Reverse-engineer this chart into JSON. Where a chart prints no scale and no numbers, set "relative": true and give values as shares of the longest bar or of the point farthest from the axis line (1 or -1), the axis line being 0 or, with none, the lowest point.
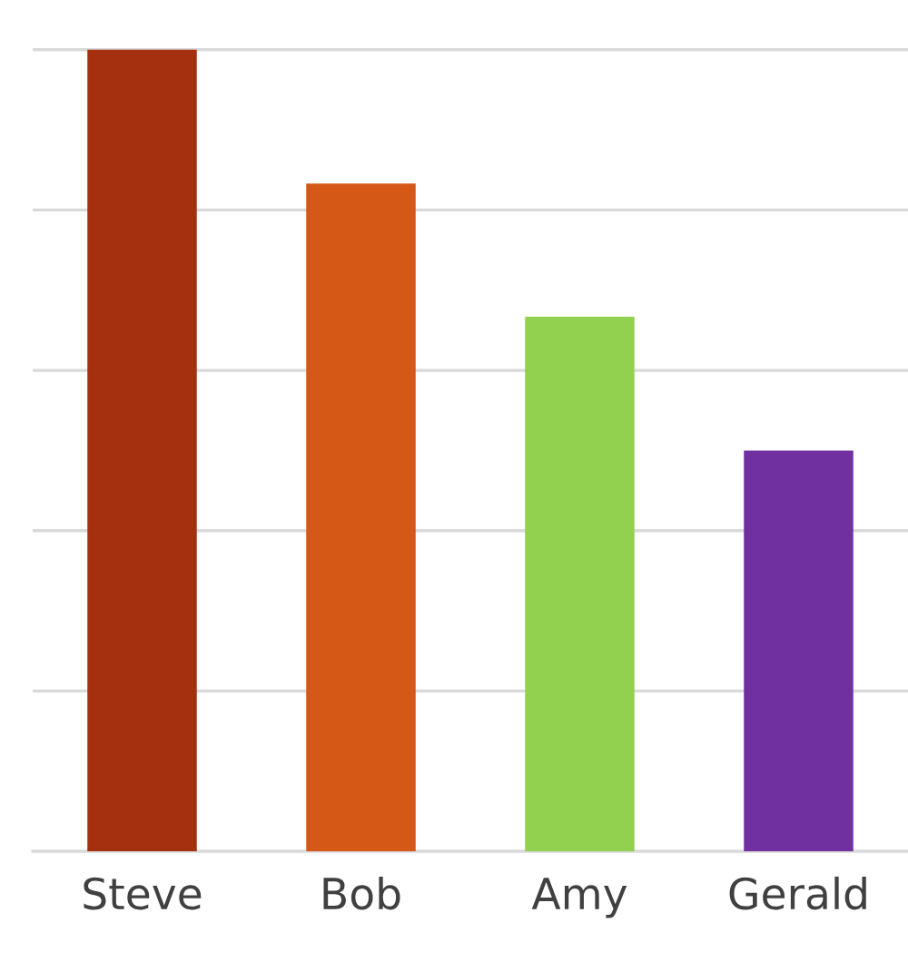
{
  "chart_data": {
    "type": "bar",
    "relative": true,
    "categories": [
      "Steve",
      "Bob",
      "Amy",
      "Gerald"
    ],
    "values": [
      1,
      0.833,
      0.667,
      0.5
    ],
    "colors": [
      "#a5300f",
      "#d55816",
      "#92d050",
      "#7030a0"
    ],
    "grid": "y",
    "legend": false
  }
}
